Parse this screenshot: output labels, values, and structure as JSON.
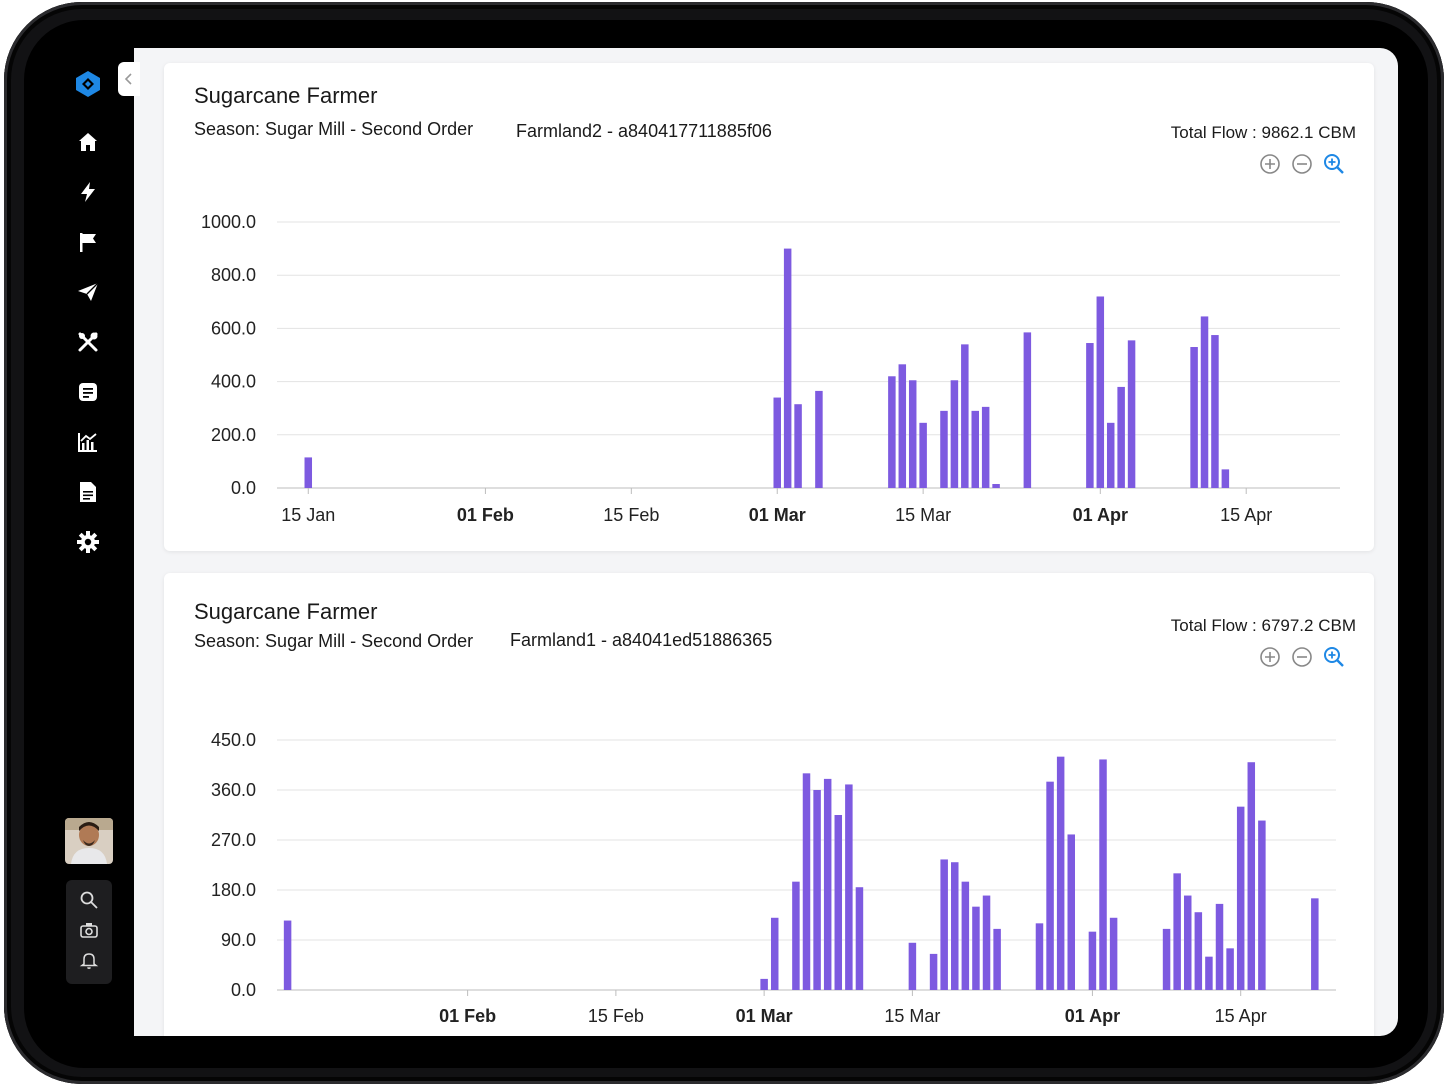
{
  "colors": {
    "bar": "#7d5ae0",
    "accent": "#1e88e5",
    "grid": "#e3e3e3",
    "axis": "#bdbdbd"
  },
  "sidebar": {
    "items": [
      {
        "name": "logo-icon"
      },
      {
        "name": "home-icon"
      },
      {
        "name": "lightning-icon"
      },
      {
        "name": "flag-icon"
      },
      {
        "name": "send-icon"
      },
      {
        "name": "tools-icon"
      },
      {
        "name": "notes-icon"
      },
      {
        "name": "analytics-icon"
      },
      {
        "name": "report-icon"
      },
      {
        "name": "settings-icon"
      }
    ],
    "bottom": [
      {
        "name": "search-icon"
      },
      {
        "name": "camera-icon"
      },
      {
        "name": "bell-icon"
      }
    ]
  },
  "cards": [
    {
      "title": "Sugarcane Farmer",
      "season": "Season: Sugar Mill - Second Order",
      "farmland": "Farmland2 - a840417711885f06",
      "total_flow": "Total Flow : 9862.1 CBM"
    },
    {
      "title": "Sugarcane Farmer",
      "season": "Season: Sugar Mill - Second Order",
      "farmland": "Farmland1 - a84041ed51886365",
      "total_flow": "Total Flow : 6797.2 CBM"
    }
  ],
  "chart_data": [
    {
      "type": "bar",
      "title": "",
      "xlabel": "",
      "ylabel": "",
      "ylim": [
        0,
        1000
      ],
      "yticks": [
        "1000.0",
        "800.0",
        "600.0",
        "400.0",
        "200.0",
        "0.0"
      ],
      "ytick_values": [
        1000,
        800,
        600,
        400,
        200,
        0
      ],
      "xticks": [
        {
          "label": "15 Jan",
          "day": 15,
          "bold": false
        },
        {
          "label": "01 Feb",
          "day": 32,
          "bold": true
        },
        {
          "label": "15 Feb",
          "day": 46,
          "bold": false
        },
        {
          "label": "01 Mar",
          "day": 60,
          "bold": true
        },
        {
          "label": "15 Mar",
          "day": 74,
          "bold": false
        },
        {
          "label": "01 Apr",
          "day": 91,
          "bold": true
        },
        {
          "label": "15 Apr",
          "day": 105,
          "bold": false
        }
      ],
      "x": [
        15,
        60,
        61,
        62,
        64,
        71,
        72,
        73,
        74,
        76,
        77,
        78,
        79,
        80,
        81,
        84,
        90,
        91,
        92,
        93,
        94,
        100,
        101,
        102,
        103,
        104,
        111
      ],
      "values": [
        115,
        340,
        900,
        315,
        365,
        420,
        465,
        405,
        245,
        290,
        405,
        540,
        290,
        305,
        15,
        585,
        545,
        720,
        245,
        380,
        555,
        530,
        645,
        575,
        70,
        0,
        0
      ]
    },
    {
      "type": "bar",
      "title": "",
      "xlabel": "",
      "ylabel": "",
      "ylim": [
        0,
        450
      ],
      "yticks": [
        "450.0",
        "360.0",
        "270.0",
        "180.0",
        "90.0",
        "0.0"
      ],
      "ytick_values": [
        450,
        360,
        270,
        180,
        90,
        0
      ],
      "xticks": [
        {
          "label": "01 Feb",
          "day": 32,
          "bold": true
        },
        {
          "label": "15 Feb",
          "day": 46,
          "bold": false
        },
        {
          "label": "01 Mar",
          "day": 60,
          "bold": true
        },
        {
          "label": "15 Mar",
          "day": 74,
          "bold": false
        },
        {
          "label": "01 Apr",
          "day": 91,
          "bold": true
        },
        {
          "label": "15 Apr",
          "day": 105,
          "bold": false
        }
      ],
      "x": [
        15,
        60,
        61,
        63,
        64,
        65,
        66,
        67,
        68,
        69,
        74,
        76,
        77,
        78,
        79,
        80,
        81,
        82,
        86,
        87,
        88,
        89,
        91,
        92,
        93,
        98,
        99,
        100,
        101,
        102,
        103,
        104,
        105,
        106,
        107,
        108,
        109,
        110,
        111,
        112
      ],
      "values": [
        125,
        20,
        130,
        195,
        390,
        360,
        380,
        315,
        370,
        185,
        85,
        65,
        235,
        230,
        195,
        150,
        170,
        110,
        120,
        375,
        420,
        280,
        105,
        415,
        130,
        110,
        210,
        170,
        140,
        60,
        155,
        75,
        330,
        410,
        305,
        0,
        0,
        0,
        0,
        165
      ]
    }
  ]
}
